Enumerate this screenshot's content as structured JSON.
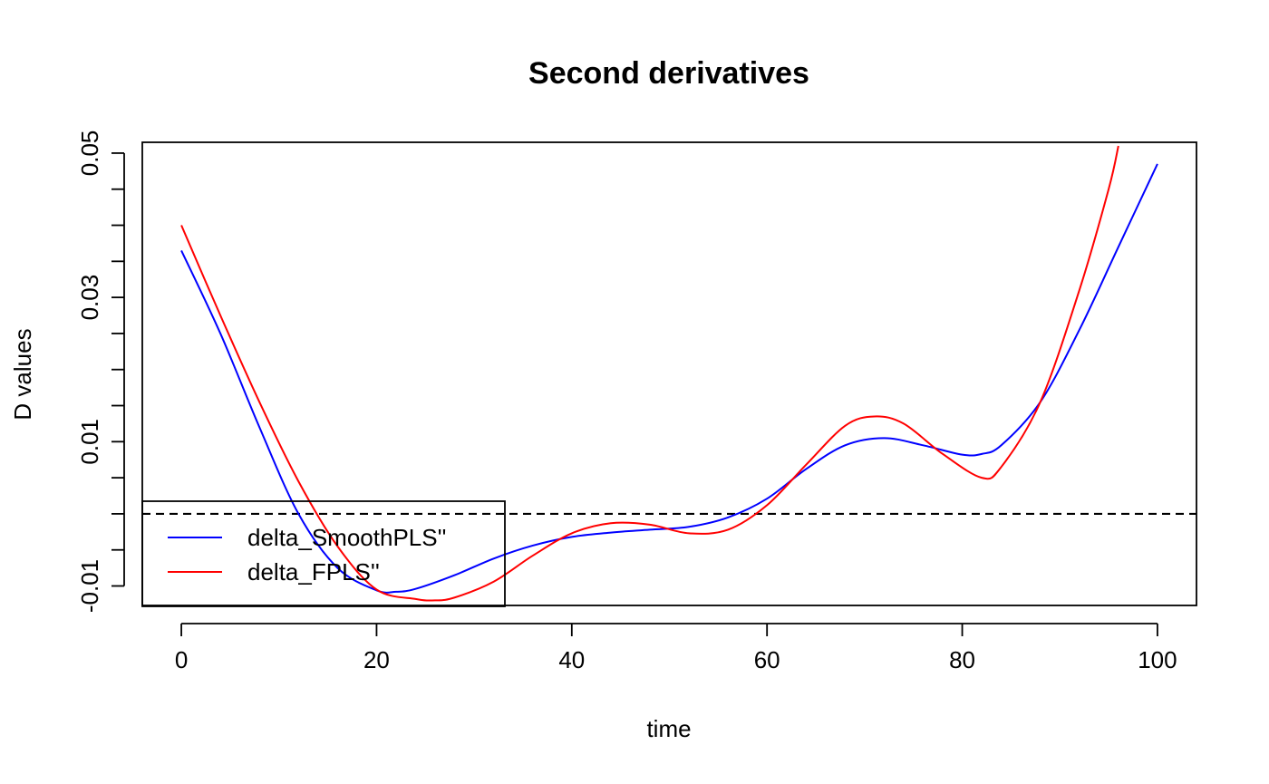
{
  "chart_data": {
    "type": "line",
    "title": "Second derivatives",
    "xlabel": "time",
    "ylabel": "D values",
    "xlim": [
      -4,
      104
    ],
    "ylim": [
      -0.0127,
      0.0515
    ],
    "xticks": [
      0,
      20,
      40,
      60,
      80,
      100
    ],
    "xtick_labels": [
      "0",
      "20",
      "40",
      "60",
      "80",
      "100"
    ],
    "yticks": [
      -0.01,
      -0.005,
      0,
      0.005,
      0.01,
      0.015,
      0.02,
      0.025,
      0.03,
      0.035,
      0.04,
      0.045,
      0.05
    ],
    "ytick_labels": [
      "-0.01",
      "",
      "",
      "",
      "0.01",
      "",
      "",
      "",
      "0.03",
      "",
      "",
      "",
      "0.05"
    ],
    "grid": false,
    "reference_line": {
      "y": 0,
      "style": "dashed",
      "color": "#000000"
    },
    "legend": {
      "position": "bottom-left"
    },
    "series": [
      {
        "name": "delta_SmoothPLS''",
        "color": "#0000ff",
        "x": [
          0,
          4,
          8,
          12,
          16,
          20,
          22,
          24,
          28,
          32,
          36,
          40,
          44,
          48,
          52,
          56,
          60,
          64,
          68,
          72,
          76,
          80,
          82,
          84,
          88,
          92,
          96,
          100
        ],
        "y": [
          0.0365,
          0.025,
          0.012,
          0.0,
          -0.0075,
          -0.0106,
          -0.0108,
          -0.0104,
          -0.0085,
          -0.0062,
          -0.0044,
          -0.0032,
          -0.0026,
          -0.0022,
          -0.0018,
          -0.0005,
          0.0021,
          0.0062,
          0.0095,
          0.0105,
          0.0095,
          0.0082,
          0.0083,
          0.0095,
          0.0155,
          0.0255,
          0.037,
          0.0485
        ]
      },
      {
        "name": "delta_FPLS''",
        "color": "#ff0000",
        "x": [
          0,
          4,
          8,
          12,
          16,
          20,
          24,
          26,
          28,
          32,
          36,
          40,
          44,
          48,
          52,
          56,
          60,
          64,
          68,
          71,
          74,
          78,
          82,
          84,
          88,
          92,
          95,
          96
        ],
        "y": [
          0.04,
          0.0275,
          0.0155,
          0.0045,
          -0.0045,
          -0.0105,
          -0.0118,
          -0.012,
          -0.0116,
          -0.0094,
          -0.0058,
          -0.0027,
          -0.0013,
          -0.0015,
          -0.0027,
          -0.0022,
          0.0012,
          0.0068,
          0.0122,
          0.0135,
          0.0125,
          0.0083,
          0.005,
          0.0065,
          0.0155,
          0.031,
          0.045,
          0.051
        ]
      }
    ]
  }
}
